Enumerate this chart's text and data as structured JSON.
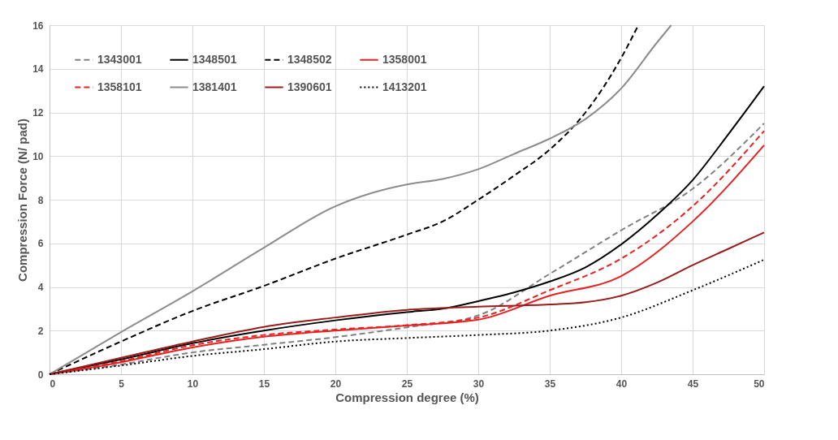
{
  "chart_data": {
    "type": "line",
    "xlabel": "Compression degree (%)",
    "ylabel": "Compression Force (N/ pad)",
    "xlim": [
      0,
      50
    ],
    "ylim": [
      0,
      16
    ],
    "xticks": [
      0,
      5,
      10,
      15,
      20,
      25,
      30,
      35,
      40,
      45,
      50
    ],
    "yticks": [
      0,
      2,
      4,
      6,
      8,
      10,
      12,
      14,
      16
    ],
    "grid": true,
    "legend": "top left",
    "marker": "none",
    "series": [
      {
        "name": "1343001",
        "color": "#808080",
        "line_style": "dashed",
        "x": [
          0,
          5,
          10,
          15,
          20,
          25,
          30,
          35,
          40,
          45,
          50
        ],
        "values": [
          0,
          0.45,
          1.0,
          1.35,
          1.7,
          2.15,
          2.7,
          4.6,
          6.6,
          8.5,
          11.5
        ]
      },
      {
        "name": "1348501",
        "color": "#000000",
        "line_style": "solid",
        "x": [
          0,
          5,
          10,
          15,
          20,
          25,
          27.5,
          30,
          32.5,
          35,
          37.5,
          40,
          42.5,
          45,
          47.5,
          50
        ],
        "values": [
          0,
          0.68,
          1.42,
          2.0,
          2.47,
          2.85,
          3.0,
          3.35,
          3.75,
          4.25,
          4.9,
          5.95,
          7.3,
          8.9,
          11.0,
          13.2
        ]
      },
      {
        "name": "1348502",
        "color": "#000000",
        "line_style": "dashed",
        "x": [
          0,
          5,
          10,
          15,
          20,
          25,
          27.5,
          30,
          32.5,
          35,
          37.5,
          40,
          41.2
        ],
        "values": [
          0,
          1.5,
          2.9,
          4.05,
          5.3,
          6.4,
          7.0,
          8.0,
          9.1,
          10.3,
          12.0,
          14.5,
          16
        ]
      },
      {
        "name": "1358001",
        "color": "#e8201f",
        "line_style": "solid",
        "x": [
          0,
          5,
          10,
          15,
          20,
          25,
          30,
          35,
          40,
          45,
          50
        ],
        "values": [
          0,
          0.55,
          1.23,
          1.72,
          2.0,
          2.23,
          2.5,
          3.6,
          4.5,
          7.0,
          10.5
        ]
      },
      {
        "name": "1358101",
        "color": "#e8201f",
        "line_style": "dashed",
        "x": [
          0,
          5,
          10,
          15,
          20,
          25,
          30,
          35,
          40,
          45,
          50
        ],
        "values": [
          0,
          0.6,
          1.33,
          1.8,
          2.05,
          2.25,
          2.6,
          3.85,
          5.3,
          7.7,
          11.15
        ]
      },
      {
        "name": "1381401",
        "color": "#8c8c8c",
        "line_style": "solid",
        "x": [
          0,
          5,
          10,
          15,
          20,
          22.5,
          25,
          27.5,
          30,
          32.5,
          35,
          37.5,
          40,
          42.5,
          43.5
        ],
        "values": [
          0,
          1.93,
          3.8,
          5.8,
          7.7,
          8.3,
          8.7,
          8.95,
          9.4,
          10.1,
          10.8,
          11.7,
          13.1,
          15.2,
          16
        ]
      },
      {
        "name": "1390601",
        "color": "#9b1b1b",
        "line_style": "solid",
        "x": [
          0,
          5,
          10,
          15,
          20,
          25,
          30,
          35,
          37.5,
          40,
          42.5,
          45,
          47.5,
          50
        ],
        "values": [
          0,
          0.75,
          1.5,
          2.17,
          2.6,
          2.95,
          3.1,
          3.2,
          3.3,
          3.6,
          4.2,
          5.0,
          5.75,
          6.5
        ]
      },
      {
        "name": "1413201",
        "color": "#000000",
        "line_style": "dotted",
        "x": [
          0,
          5,
          10,
          15,
          20,
          25,
          30,
          35,
          40,
          45,
          50
        ],
        "values": [
          0,
          0.4,
          0.84,
          1.15,
          1.5,
          1.66,
          1.8,
          2.0,
          2.6,
          3.85,
          5.25
        ]
      }
    ]
  }
}
